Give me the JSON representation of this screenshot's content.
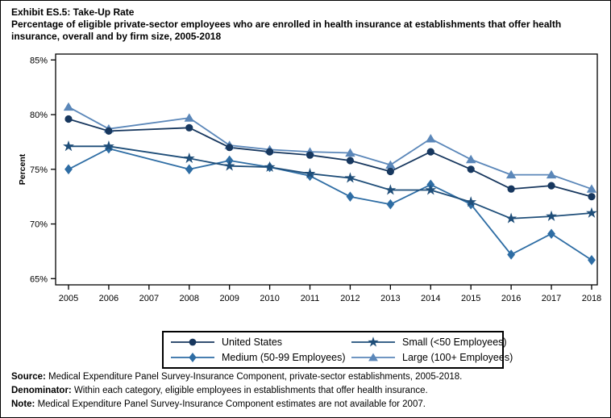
{
  "title": {
    "exhibit": "Exhibit ES.5: Take-Up Rate",
    "subtitle": "Percentage of eligible private-sector employees who are enrolled in health insurance at establishments that offer health insurance, overall and by firm size, 2005-2018"
  },
  "chart_data": {
    "type": "line",
    "title": "Exhibit ES.5: Take-Up Rate",
    "x": [
      2005,
      2006,
      2007,
      2008,
      2009,
      2010,
      2011,
      2012,
      2013,
      2014,
      2015,
      2016,
      2017,
      2018
    ],
    "missing_x": [
      2007
    ],
    "series": [
      {
        "name": "United States",
        "marker": "circle",
        "color": "#17375E",
        "values": [
          79.6,
          78.5,
          null,
          78.8,
          77.0,
          76.6,
          76.3,
          75.8,
          74.8,
          76.6,
          75.0,
          73.2,
          73.5,
          72.5
        ]
      },
      {
        "name": "Medium (50-99 Employees)",
        "marker": "diamond",
        "color": "#2E6DA4",
        "values": [
          75.0,
          76.9,
          null,
          75.0,
          75.8,
          75.2,
          74.4,
          72.5,
          71.8,
          73.6,
          71.8,
          67.2,
          69.1,
          66.7
        ]
      },
      {
        "name": "Small (<50 Employees)",
        "marker": "star",
        "color": "#1F4E79",
        "values": [
          77.1,
          77.1,
          null,
          76.0,
          75.3,
          75.2,
          74.6,
          74.2,
          73.1,
          73.1,
          72.0,
          70.5,
          70.7,
          71.0
        ]
      },
      {
        "name": "Large (100+ Employees)",
        "marker": "triangle",
        "color": "#5B87B9",
        "values": [
          80.7,
          78.7,
          null,
          79.7,
          77.2,
          76.8,
          76.6,
          76.5,
          75.4,
          77.8,
          75.9,
          74.5,
          74.5,
          73.2
        ]
      }
    ],
    "xlabel": "",
    "ylabel": "Percent",
    "ylim": [
      65,
      85
    ],
    "yticks": [
      85,
      80,
      75,
      70,
      65
    ],
    "ytick_labels": [
      "85%",
      "80%",
      "75%",
      "70%",
      "65%"
    ],
    "grid": false,
    "legend_position": "bottom-center"
  },
  "footnotes": [
    {
      "label": "Source:",
      "text": " Medical Expenditure Panel Survey-Insurance Component, private-sector establishments, 2005-2018."
    },
    {
      "label": "Denominator:",
      "text": " Within each category, eligible employees in establishments that offer health insurance."
    },
    {
      "label": "Note:",
      "text": " Medical Expenditure Panel Survey-Insurance Component estimates are not available for 2007."
    }
  ]
}
